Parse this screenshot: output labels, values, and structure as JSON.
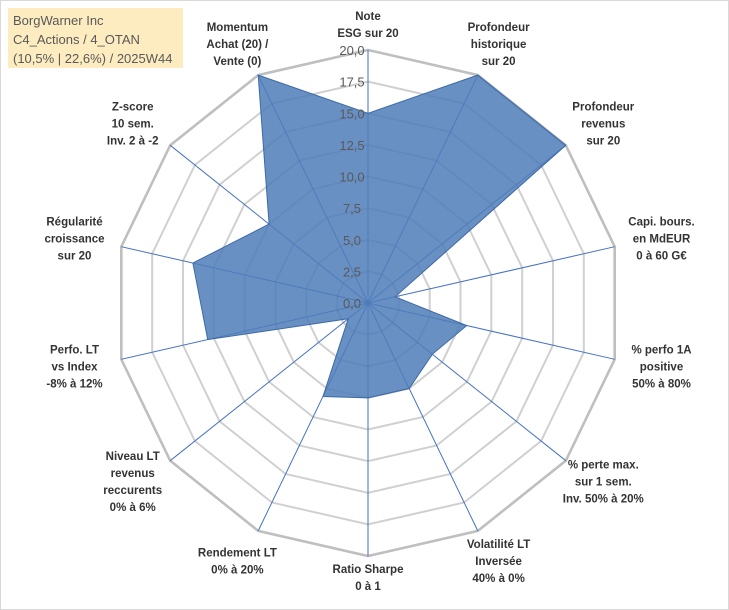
{
  "info": {
    "line1": "BorgWarner Inc",
    "line2": "C4_Actions / 4_OTAN",
    "line3": "(10,5% | 22,6%) / 2025W44"
  },
  "chart_data": {
    "type": "radar",
    "rmax": 20,
    "tick_values": [
      0,
      2.5,
      5,
      7.5,
      10,
      12.5,
      15,
      17.5,
      20
    ],
    "tick_labels": [
      "0,0",
      "2,5",
      "5,0",
      "7,5",
      "10,0",
      "12,5",
      "15,0",
      "17,5",
      "20,0"
    ],
    "fill_color": "#4f7cb8",
    "axes": [
      {
        "label": [
          "Note",
          "ESG sur 20"
        ],
        "value": 15.0
      },
      {
        "label": [
          "Profondeur",
          "historique",
          "sur 20"
        ],
        "value": 20.0
      },
      {
        "label": [
          "Profondeur",
          "revenus",
          "sur 20"
        ],
        "value": 20.0
      },
      {
        "label": [
          "Capi. bours.",
          "en MdEUR",
          "0 à 60 G€"
        ],
        "value": 2.2
      },
      {
        "label": [
          "% perfo 1A",
          "positive",
          "50% à 80%"
        ],
        "value": 8.0
      },
      {
        "label": [
          "% perte max.",
          "sur 1 sem.",
          "Inv. 50% à 20%"
        ],
        "value": 6.5
      },
      {
        "label": [
          "Volatilité LT",
          "Inversée",
          "40% à 0%"
        ],
        "value": 7.5
      },
      {
        "label": [
          "Ratio Sharpe",
          "0 à 1"
        ],
        "value": 7.5
      },
      {
        "label": [
          "Rendement LT",
          "0% à 20%"
        ],
        "value": 8.2
      },
      {
        "label": [
          "Niveau LT",
          "revenus",
          "reccurents",
          "0% à 6%"
        ],
        "value": 2.0
      },
      {
        "label": [
          "Perfo. LT",
          "vs Index",
          "-8% à 12%"
        ],
        "value": 13.0
      },
      {
        "label": [
          "Régularité",
          "croissance",
          "sur 20"
        ],
        "value": 14.2
      },
      {
        "label": [
          "Z-score",
          "10 sem.",
          "Inv. 2 à -2"
        ],
        "value": 10.0
      },
      {
        "label": [
          "Momentum",
          "Achat (20) /",
          "Vente (0)"
        ],
        "value": 20.0
      }
    ]
  }
}
